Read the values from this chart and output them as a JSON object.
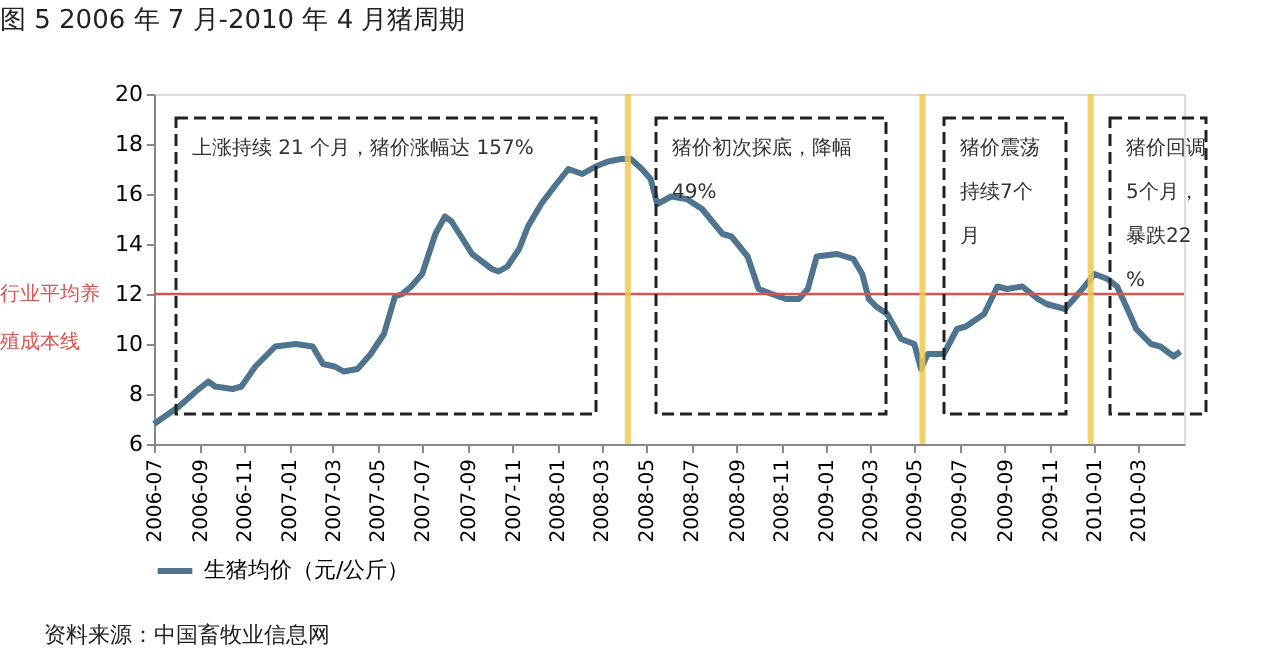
{
  "chart_data": {
    "type": "line",
    "title": "图 5   2006 年 7 月-2010 年 4 月猪周期",
    "x": [
      "2006-07-01",
      "2006-08-04",
      "2006-08-27",
      "2006-09-13",
      "2006-09-22",
      "2006-10-16",
      "2006-10-28",
      "2006-11-16",
      "2006-12-13",
      "2007-01-10",
      "2007-02-02",
      "2007-02-16",
      "2007-03-04",
      "2007-03-16",
      "2007-04-04",
      "2007-04-22",
      "2007-05-10",
      "2007-05-25",
      "2007-06-04",
      "2007-06-16",
      "2007-07-01",
      "2007-07-19",
      "2007-08-01",
      "2007-08-10",
      "2007-08-23",
      "2007-09-07",
      "2007-09-16",
      "2007-10-04",
      "2007-10-13",
      "2007-10-25",
      "2007-11-10",
      "2007-11-22",
      "2007-12-10",
      "2007-12-28",
      "2008-01-16",
      "2008-02-04",
      "2008-02-22",
      "2008-03-10",
      "2008-03-28",
      "2008-04-10",
      "2008-04-25",
      "2008-05-07",
      "2008-05-16",
      "2008-06-04",
      "2008-06-25",
      "2008-07-16",
      "2008-08-13",
      "2008-08-25",
      "2008-09-16",
      "2008-10-01",
      "2008-10-19",
      "2008-11-07",
      "2008-11-25",
      "2008-12-07",
      "2008-12-19",
      "2009-01-16",
      "2009-02-07",
      "2009-02-19",
      "2009-02-28",
      "2009-03-10",
      "2009-03-25",
      "2009-04-13",
      "2009-05-01",
      "2009-05-10",
      "2009-05-19",
      "2009-06-10",
      "2009-06-28",
      "2009-07-10",
      "2009-08-04",
      "2009-08-22",
      "2009-09-04",
      "2009-09-25",
      "2009-10-16",
      "2009-10-28",
      "2009-11-22",
      "2009-12-13",
      "2010-01-01",
      "2010-01-19",
      "2010-02-01",
      "2010-02-15",
      "2010-02-27",
      "2010-03-19",
      "2010-04-01",
      "2010-04-19",
      "2010-04-28"
    ],
    "series": [
      {
        "name": "生猪均价（元/公斤）",
        "color": "#4f7490",
        "values": [
          6.8,
          7.5,
          8.1,
          8.5,
          8.3,
          8.2,
          8.3,
          9.1,
          9.9,
          10.0,
          9.9,
          9.2,
          9.1,
          8.9,
          9.0,
          9.6,
          10.4,
          11.9,
          12.0,
          12.3,
          12.8,
          14.4,
          15.1,
          14.9,
          14.3,
          13.6,
          13.4,
          13.0,
          12.9,
          13.1,
          13.8,
          14.7,
          15.6,
          16.3,
          17.0,
          16.8,
          17.1,
          17.3,
          17.4,
          17.4,
          17.0,
          16.6,
          15.6,
          15.9,
          15.8,
          15.4,
          14.4,
          14.3,
          13.5,
          12.2,
          12.0,
          11.8,
          11.8,
          12.2,
          13.5,
          13.6,
          13.4,
          12.8,
          11.8,
          11.5,
          11.2,
          10.2,
          10.0,
          9.0,
          9.6,
          9.6,
          10.6,
          10.7,
          11.2,
          12.3,
          12.2,
          12.3,
          11.8,
          11.6,
          11.4,
          12.1,
          12.8,
          12.6,
          12.3,
          11.4,
          10.6,
          10.0,
          9.9,
          9.5,
          9.7
        ]
      }
    ],
    "xlim": [
      "2006-07-01",
      "2010-05-03"
    ],
    "xticks": [
      {
        "value": "2006-07-01",
        "label": "2006-07"
      },
      {
        "value": "2006-09-01",
        "label": "2006-09"
      },
      {
        "value": "2006-11-01",
        "label": "2006-11"
      },
      {
        "value": "2007-01-01",
        "label": "2007-01"
      },
      {
        "value": "2007-03-01",
        "label": "2007-03"
      },
      {
        "value": "2007-05-01",
        "label": "2007-05"
      },
      {
        "value": "2007-07-01",
        "label": "2007-07"
      },
      {
        "value": "2007-09-01",
        "label": "2007-09"
      },
      {
        "value": "2007-11-01",
        "label": "2007-11"
      },
      {
        "value": "2008-01-01",
        "label": "2008-01"
      },
      {
        "value": "2008-03-01",
        "label": "2008-03"
      },
      {
        "value": "2008-05-01",
        "label": "2008-05"
      },
      {
        "value": "2008-07-01",
        "label": "2008-07"
      },
      {
        "value": "2008-09-01",
        "label": "2008-09"
      },
      {
        "value": "2008-11-01",
        "label": "2008-11"
      },
      {
        "value": "2009-01-01",
        "label": "2009-01"
      },
      {
        "value": "2009-03-01",
        "label": "2009-03"
      },
      {
        "value": "2009-05-01",
        "label": "2009-05"
      },
      {
        "value": "2009-07-01",
        "label": "2009-07"
      },
      {
        "value": "2009-09-01",
        "label": "2009-09"
      },
      {
        "value": "2009-11-01",
        "label": "2009-11"
      },
      {
        "value": "2010-01-01",
        "label": "2010-01"
      },
      {
        "value": "2010-03-01",
        "label": "2010-03"
      }
    ],
    "ylim": [
      6,
      20
    ],
    "yticks": [
      6,
      8,
      10,
      12,
      14,
      16,
      18,
      20
    ],
    "ref_lines": [
      {
        "axis": "y",
        "value": 12,
        "label": "行业平均养殖成本线",
        "color": "#d9534f"
      },
      {
        "axis": "x",
        "value": "2008-04-06",
        "label": null,
        "color": "#f0c850"
      },
      {
        "axis": "x",
        "value": "2009-05-12",
        "label": null,
        "color": "#f0c850"
      },
      {
        "axis": "x",
        "value": "2009-12-27",
        "label": null,
        "color": "#f0c850"
      }
    ],
    "annotations": [
      "上涨持续 21 个月，猪价涨幅达 157%",
      "猪价初次探底，降幅49%",
      "猪价震荡持续7个月",
      "猪价回调5个月，暴跌22%",
      "资料来源：中国畜牧业信息网"
    ],
    "grid": false,
    "legend": "bottom",
    "marker": "none",
    "line_style": "solid"
  }
}
